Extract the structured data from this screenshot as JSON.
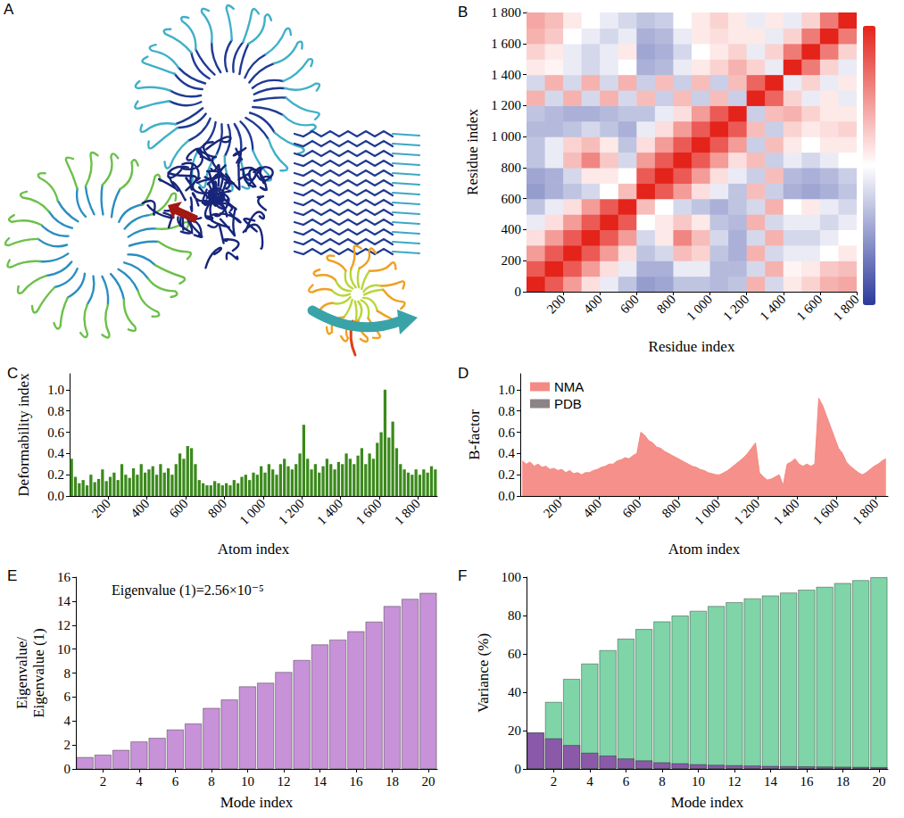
{
  "chart_data": [
    {
      "type": "structure",
      "title": "A"
    },
    {
      "type": "heatmap",
      "title": "B",
      "x_label": "Residue index",
      "y_label": "Residue index",
      "xlim": [
        0,
        1800
      ],
      "ylim": [
        0,
        1800
      ],
      "xticks": [
        200,
        400,
        600,
        800,
        {
          "value": 1000,
          "label": "1 000"
        },
        {
          "value": 1200,
          "label": "1 200"
        },
        {
          "value": 1400,
          "label": "1 400"
        },
        {
          "value": 1600,
          "label": "1 600"
        },
        {
          "value": 1800,
          "label": "1 800"
        }
      ],
      "yticks": [
        0,
        200,
        400,
        600,
        800,
        {
          "value": 1000,
          "label": "1 000"
        },
        {
          "value": 1200,
          "label": "1 200"
        },
        {
          "value": 1400,
          "label": "1 400"
        },
        {
          "value": 1600,
          "label": "1 600"
        },
        {
          "value": 1800,
          "label": "1 800"
        }
      ],
      "x_edges": [
        0,
        100,
        200,
        300,
        400,
        500,
        600,
        700,
        800,
        900,
        1000,
        1100,
        1200,
        1300,
        1400,
        1500,
        1600,
        1700,
        1800
      ],
      "y_edges": [
        0,
        100,
        200,
        300,
        400,
        500,
        600,
        700,
        800,
        900,
        1000,
        1100,
        1200,
        1300,
        1400,
        1500,
        1600,
        1700,
        1800
      ],
      "cells": [
        [
          1,
          0.75,
          0.45,
          0.15,
          -0.1,
          -0.3,
          -0.5,
          -0.45,
          -0.3,
          -0.3,
          -0.35,
          -0.3,
          0.35,
          -0.2,
          0.1,
          0.2,
          0.35,
          0.4
        ],
        [
          0.75,
          1,
          0.75,
          0.45,
          0.15,
          -0.1,
          -0.4,
          -0.4,
          -0.1,
          -0.1,
          -0.35,
          -0.35,
          -0.2,
          0.35,
          0.05,
          0.1,
          0.25,
          0.3
        ],
        [
          0.45,
          0.75,
          1,
          0.75,
          0.45,
          0.15,
          -0.3,
          -0.2,
          0.3,
          0.2,
          -0.3,
          -0.4,
          0.35,
          -0.2,
          -0.1,
          -0.1,
          0,
          0.1
        ],
        [
          0.15,
          0.45,
          0.75,
          1,
          0.75,
          0.45,
          -0.2,
          0.1,
          0.55,
          0.3,
          -0.2,
          -0.4,
          -0.2,
          0.35,
          -0.2,
          -0.2,
          -0.1,
          0
        ],
        [
          -0.1,
          0.15,
          0.45,
          0.75,
          1,
          0.75,
          0,
          0.1,
          0.25,
          0.1,
          -0.3,
          -0.35,
          0.35,
          -0.2,
          -0.1,
          -0.1,
          -0.2,
          -0.1
        ],
        [
          -0.3,
          -0.1,
          0.15,
          0.45,
          0.75,
          1,
          0.3,
          0,
          -0.2,
          -0.3,
          -0.4,
          -0.3,
          -0.2,
          0.35,
          0,
          0.1,
          -0.1,
          -0.2
        ],
        [
          -0.5,
          -0.4,
          -0.3,
          -0.2,
          0,
          0.3,
          1,
          0.75,
          0.45,
          0.15,
          -0.1,
          -0.3,
          0.3,
          -0.25,
          -0.4,
          -0.45,
          -0.4,
          -0.3
        ],
        [
          -0.45,
          -0.4,
          -0.2,
          0.1,
          0.1,
          0,
          0.75,
          1,
          0.75,
          0.45,
          0.15,
          -0.1,
          -0.25,
          0.3,
          -0.35,
          -0.4,
          -0.35,
          -0.25
        ],
        [
          -0.3,
          -0.1,
          0.3,
          0.55,
          0.25,
          -0.2,
          0.45,
          0.75,
          1,
          0.75,
          0.45,
          0.15,
          0.3,
          -0.25,
          -0.1,
          -0.2,
          -0.1,
          0
        ],
        [
          -0.3,
          -0.1,
          0.2,
          0.3,
          0.1,
          -0.3,
          0.15,
          0.45,
          0.75,
          1,
          0.75,
          0.45,
          -0.25,
          0.3,
          0.1,
          0,
          0.1,
          0.1
        ],
        [
          -0.35,
          -0.35,
          -0.3,
          -0.2,
          -0.3,
          -0.4,
          -0.1,
          0.15,
          0.45,
          0.75,
          1,
          0.75,
          0.3,
          -0.25,
          0.2,
          0.1,
          0.15,
          0.2
        ],
        [
          -0.3,
          -0.35,
          -0.4,
          -0.4,
          -0.35,
          -0.3,
          -0.3,
          -0.1,
          0.15,
          0.45,
          0.75,
          1,
          -0.25,
          0.3,
          0.35,
          0.2,
          0.1,
          0.1
        ],
        [
          0.35,
          -0.2,
          0.35,
          -0.2,
          0.35,
          -0.2,
          0.3,
          -0.25,
          0.3,
          -0.25,
          0.3,
          -0.25,
          1,
          0.7,
          0.2,
          -0.1,
          0.1,
          -0.1
        ],
        [
          -0.2,
          0.35,
          -0.2,
          0.35,
          -0.2,
          0.35,
          -0.25,
          0.3,
          -0.25,
          0.3,
          -0.25,
          0.3,
          0.7,
          1,
          -0.1,
          0.2,
          -0.1,
          0.1
        ],
        [
          0.1,
          0.05,
          -0.1,
          -0.2,
          -0.1,
          0,
          -0.4,
          -0.35,
          -0.1,
          0.1,
          0.2,
          0.35,
          0.2,
          -0.1,
          1,
          0.6,
          0.2,
          -0.1
        ],
        [
          0.2,
          0.1,
          -0.1,
          -0.2,
          -0.1,
          0.1,
          -0.45,
          -0.4,
          -0.2,
          0,
          0.1,
          0.2,
          -0.1,
          0.2,
          0.6,
          1,
          0.6,
          0.2
        ],
        [
          0.35,
          0.25,
          0,
          -0.1,
          -0.2,
          -0.1,
          -0.4,
          -0.35,
          -0.1,
          0.1,
          0.15,
          0.1,
          0.1,
          -0.1,
          0.2,
          0.6,
          1,
          0.6
        ],
        [
          0.4,
          0.3,
          0.1,
          0,
          -0.1,
          -0.2,
          -0.3,
          -0.25,
          0,
          0.1,
          0.2,
          0.1,
          -0.1,
          0.1,
          -0.1,
          0.2,
          0.6,
          1
        ]
      ],
      "colorbar_range": [
        -1,
        1
      ],
      "grid": false
    },
    {
      "type": "bar",
      "title": "C",
      "x_label": "Atom index",
      "y_label": "Deformability index",
      "x": [
        10,
        30,
        50,
        70,
        90,
        110,
        130,
        150,
        170,
        190,
        210,
        230,
        250,
        270,
        290,
        310,
        330,
        350,
        370,
        390,
        410,
        430,
        450,
        470,
        490,
        510,
        530,
        550,
        570,
        590,
        610,
        630,
        650,
        670,
        690,
        710,
        730,
        750,
        770,
        790,
        810,
        830,
        850,
        870,
        890,
        910,
        930,
        950,
        970,
        990,
        1010,
        1030,
        1050,
        1070,
        1090,
        1110,
        1130,
        1150,
        1170,
        1190,
        1210,
        1230,
        1250,
        1270,
        1290,
        1310,
        1330,
        1350,
        1370,
        1390,
        1410,
        1430,
        1450,
        1470,
        1490,
        1510,
        1530,
        1550,
        1570,
        1590,
        1610,
        1630,
        1650,
        1670,
        1690,
        1710,
        1730,
        1750,
        1770,
        1790,
        1810,
        1830,
        1850,
        1870,
        1890
      ],
      "values": [
        0.35,
        0.18,
        0.12,
        0.15,
        0.1,
        0.2,
        0.13,
        0.16,
        0.25,
        0.14,
        0.18,
        0.22,
        0.15,
        0.3,
        0.2,
        0.17,
        0.26,
        0.2,
        0.3,
        0.22,
        0.25,
        0.28,
        0.2,
        0.3,
        0.22,
        0.26,
        0.2,
        0.3,
        0.4,
        0.35,
        0.47,
        0.45,
        0.3,
        0.15,
        0.12,
        0.1,
        0.1,
        0.14,
        0.12,
        0.1,
        0.12,
        0.1,
        0.15,
        0.12,
        0.18,
        0.2,
        0.15,
        0.22,
        0.2,
        0.28,
        0.22,
        0.3,
        0.25,
        0.2,
        0.3,
        0.35,
        0.28,
        0.25,
        0.3,
        0.4,
        0.67,
        0.35,
        0.25,
        0.3,
        0.22,
        0.28,
        0.35,
        0.3,
        0.25,
        0.32,
        0.3,
        0.4,
        0.35,
        0.3,
        0.38,
        0.45,
        0.3,
        0.4,
        0.35,
        0.5,
        0.6,
        1.0,
        0.55,
        0.7,
        0.45,
        0.3,
        0.25,
        0.22,
        0.2,
        0.25,
        0.2,
        0.25,
        0.22,
        0.28,
        0.25
      ],
      "color": "#3b8a1c",
      "xlim": [
        0,
        1900
      ],
      "ylim": [
        0,
        1.15
      ],
      "xticks": [
        200,
        400,
        600,
        800,
        {
          "value": 1000,
          "label": "1 000"
        },
        {
          "value": 1200,
          "label": "1 200"
        },
        {
          "value": 1400,
          "label": "1 400"
        },
        {
          "value": 1600,
          "label": "1 600"
        },
        {
          "value": 1800,
          "label": "1 800"
        }
      ],
      "yticks": [
        {
          "value": 0,
          "label": "0.0"
        },
        0.2,
        0.4,
        0.6,
        0.8,
        {
          "value": 1,
          "label": "1.0"
        }
      ],
      "grid": false
    },
    {
      "type": "area",
      "title": "D",
      "x_label": "Atom index",
      "y_label": "B-factor",
      "x": [
        10,
        30,
        50,
        70,
        90,
        110,
        130,
        150,
        170,
        190,
        210,
        230,
        250,
        270,
        290,
        310,
        330,
        350,
        370,
        390,
        410,
        430,
        450,
        470,
        490,
        510,
        530,
        550,
        570,
        590,
        610,
        630,
        650,
        670,
        690,
        710,
        730,
        750,
        770,
        790,
        810,
        830,
        850,
        870,
        890,
        910,
        930,
        950,
        970,
        990,
        1010,
        1030,
        1050,
        1070,
        1090,
        1110,
        1130,
        1150,
        1170,
        1190,
        1210,
        1230,
        1250,
        1270,
        1290,
        1310,
        1330,
        1350,
        1370,
        1390,
        1410,
        1430,
        1450,
        1470,
        1490,
        1510,
        1530,
        1550,
        1570,
        1590,
        1610,
        1630,
        1650,
        1670,
        1690,
        1710,
        1730,
        1750,
        1770,
        1790,
        1810,
        1830,
        1850
      ],
      "series": [
        {
          "name": "NMA",
          "color": "#f48a84",
          "values": [
            0.33,
            0.3,
            0.32,
            0.28,
            0.3,
            0.27,
            0.28,
            0.25,
            0.26,
            0.24,
            0.25,
            0.22,
            0.24,
            0.21,
            0.22,
            0.2,
            0.22,
            0.22,
            0.24,
            0.25,
            0.27,
            0.28,
            0.3,
            0.3,
            0.33,
            0.34,
            0.36,
            0.35,
            0.38,
            0.4,
            0.6,
            0.57,
            0.52,
            0.5,
            0.46,
            0.45,
            0.42,
            0.4,
            0.38,
            0.36,
            0.34,
            0.32,
            0.3,
            0.28,
            0.27,
            0.25,
            0.24,
            0.22,
            0.21,
            0.2,
            0.2,
            0.22,
            0.24,
            0.27,
            0.3,
            0.33,
            0.36,
            0.4,
            0.45,
            0.5,
            0.22,
            0.18,
            0.15,
            0.16,
            0.18,
            0.2,
            0.1,
            0.3,
            0.32,
            0.35,
            0.3,
            0.28,
            0.3,
            0.28,
            0.3,
            0.92,
            0.85,
            0.75,
            0.65,
            0.55,
            0.45,
            0.4,
            0.32,
            0.28,
            0.25,
            0.22,
            0.2,
            0.22,
            0.25,
            0.28,
            0.3,
            0.33,
            0.35
          ]
        },
        {
          "name": "PDB",
          "color": "#8c8385",
          "values": [
            null,
            null,
            null,
            null,
            null,
            null,
            null,
            null,
            null,
            null,
            null,
            null,
            null,
            null,
            null,
            null,
            null,
            null,
            null,
            null,
            null,
            null,
            null,
            null,
            null,
            null,
            null,
            null,
            null,
            null,
            null,
            null,
            null,
            null,
            null,
            null,
            null,
            null,
            null,
            null,
            null,
            null,
            null,
            null,
            null,
            null,
            null,
            null,
            null,
            null,
            null,
            null,
            null,
            null,
            null,
            null,
            null,
            null,
            null,
            null,
            null,
            null,
            null,
            null,
            null,
            null,
            null,
            null,
            null,
            null,
            null,
            null,
            null,
            null,
            null,
            null,
            null,
            null,
            null,
            null,
            null,
            null,
            null,
            null,
            null,
            null,
            null,
            null,
            null,
            null,
            null,
            null,
            null
          ]
        }
      ],
      "legend": "upper left",
      "xlim": [
        0,
        1860
      ],
      "ylim": [
        0,
        1.15
      ],
      "xticks": [
        200,
        400,
        600,
        800,
        {
          "value": 1000,
          "label": "1 000"
        },
        {
          "value": 1200,
          "label": "1 200"
        },
        {
          "value": 1400,
          "label": "1 400"
        },
        {
          "value": 1600,
          "label": "1 600"
        },
        {
          "value": 1800,
          "label": "1 800"
        }
      ],
      "yticks": [
        {
          "value": 0,
          "label": "0.0"
        },
        0.2,
        0.4,
        0.6,
        0.8,
        {
          "value": 1,
          "label": "1.0"
        }
      ],
      "grid": false
    },
    {
      "type": "bar",
      "title": "E",
      "x_label": "Mode index",
      "y_label": "Eigenvalue/Eigenvalue (1)",
      "annotations": [
        "Eigenvalue (1)=2.56×10⁻⁵"
      ],
      "x": [
        1,
        2,
        3,
        4,
        5,
        6,
        7,
        8,
        9,
        10,
        11,
        12,
        13,
        14,
        15,
        16,
        17,
        18,
        19,
        20
      ],
      "values": [
        1,
        1.2,
        1.6,
        2.3,
        2.6,
        3.3,
        3.8,
        5.1,
        5.8,
        6.9,
        7.2,
        8.1,
        9.1,
        10.4,
        10.8,
        11.5,
        12.3,
        13.6,
        14.2,
        14.7
      ],
      "color": "#c792d8",
      "xlim": [
        0.5,
        20.5
      ],
      "ylim": [
        0,
        16
      ],
      "xticks": [
        2,
        4,
        6,
        8,
        10,
        12,
        14,
        16,
        18,
        20
      ],
      "yticks": [
        0,
        2,
        4,
        6,
        8,
        10,
        12,
        14,
        16
      ],
      "grid": false
    },
    {
      "type": "bar",
      "title": "F",
      "x_label": "Mode index",
      "y_label": "Variance (%)",
      "x": [
        1,
        2,
        3,
        4,
        5,
        6,
        7,
        8,
        9,
        10,
        11,
        12,
        13,
        14,
        15,
        16,
        17,
        18,
        19,
        20
      ],
      "series": [
        {
          "color": "#7fd4a8",
          "values": [
            19,
            35,
            47,
            55,
            62,
            68,
            73,
            77,
            80,
            82.5,
            85,
            87,
            89,
            90.5,
            92,
            93.5,
            95,
            97,
            98.5,
            100
          ]
        },
        {
          "color": "#8a5aa8",
          "values": [
            19,
            16,
            12.5,
            8.5,
            7,
            5.5,
            4.5,
            3.5,
            3,
            2.5,
            2.2,
            2,
            1.8,
            1.6,
            1.5,
            1.4,
            1.3,
            1.2,
            1.1,
            1
          ]
        }
      ],
      "stacked": false,
      "xlim": [
        0.5,
        20.5
      ],
      "ylim": [
        0,
        100
      ],
      "xticks": [
        2,
        4,
        6,
        8,
        10,
        12,
        14,
        16,
        18,
        20
      ],
      "yticks": [
        0,
        20,
        40,
        60,
        80,
        100
      ],
      "grid": false
    }
  ]
}
